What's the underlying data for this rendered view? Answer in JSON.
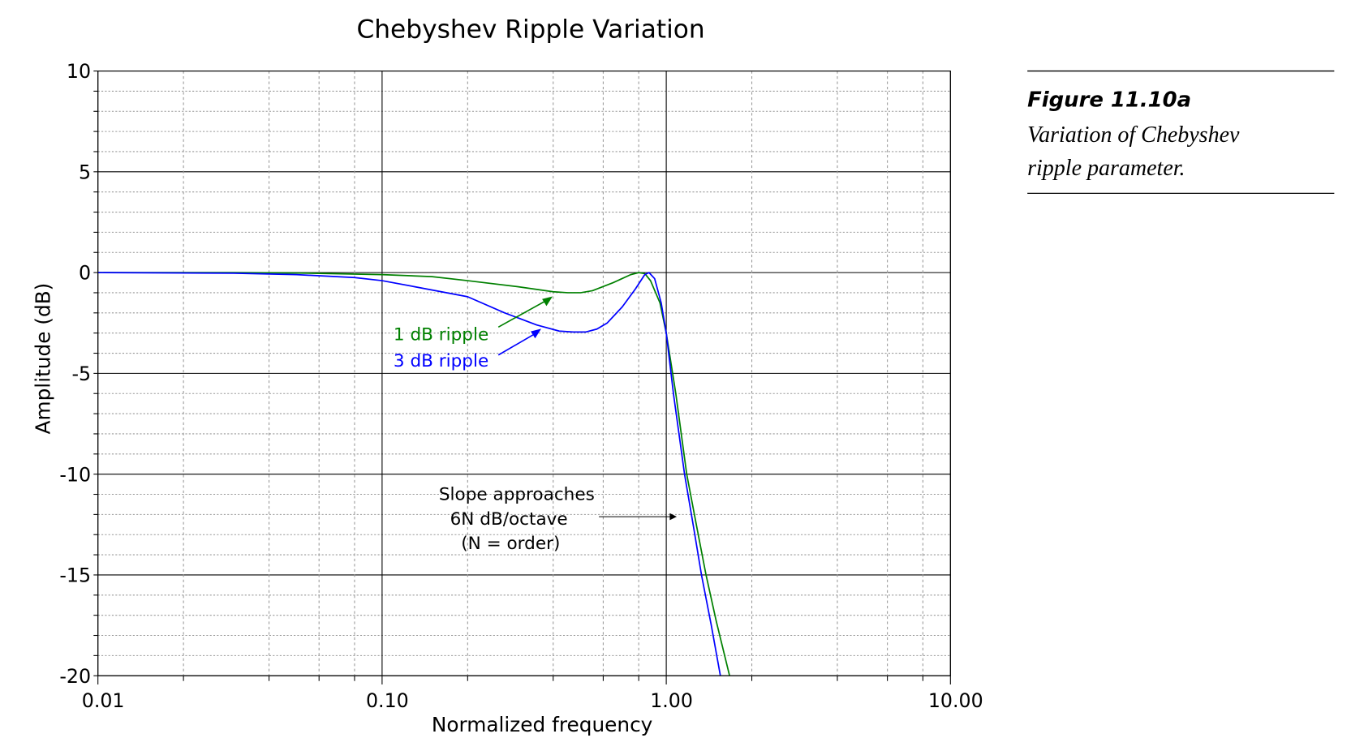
{
  "chart_data": {
    "type": "line",
    "title": "Chebyshev Ripple Variation",
    "xlabel": "Normalized frequency",
    "ylabel": "Amplitude (dB)",
    "xscale": "log",
    "xlim": [
      0.01,
      10
    ],
    "ylim": [
      -20,
      10
    ],
    "x_ticks": [
      {
        "value": 0.01,
        "label": "0.01"
      },
      {
        "value": 0.1,
        "label": "0.10"
      },
      {
        "value": 1,
        "label": "1.00"
      },
      {
        "value": 10,
        "label": "10.00"
      }
    ],
    "y_ticks": [
      {
        "value": 10,
        "label": "10"
      },
      {
        "value": 5,
        "label": "5"
      },
      {
        "value": 0,
        "label": "0"
      },
      {
        "value": -5,
        "label": "-5"
      },
      {
        "value": -10,
        "label": "-10"
      },
      {
        "value": -15,
        "label": "-15"
      },
      {
        "value": -20,
        "label": "-20"
      }
    ],
    "grid": true,
    "series": [
      {
        "name": "1 dB ripple",
        "color": "#008000",
        "x": [
          0.01,
          0.03,
          0.05,
          0.1,
          0.15,
          0.2,
          0.3,
          0.4,
          0.45,
          0.5,
          0.55,
          0.65,
          0.75,
          0.8,
          0.84,
          0.88,
          0.95,
          1.0,
          1.08,
          1.18,
          1.28,
          1.38,
          1.5,
          1.67
        ],
        "y": [
          0,
          0,
          -0.02,
          -0.1,
          -0.2,
          -0.4,
          -0.7,
          -0.95,
          -1.0,
          -1.0,
          -0.9,
          -0.5,
          -0.1,
          0,
          -0.05,
          -0.4,
          -1.5,
          -3.0,
          -6.0,
          -10.0,
          -12.6,
          -15.0,
          -17.3,
          -20.0
        ]
      },
      {
        "name": "3 dB ripple",
        "color": "#0000ff",
        "x": [
          0.01,
          0.03,
          0.05,
          0.08,
          0.1,
          0.13,
          0.2,
          0.27,
          0.35,
          0.42,
          0.47,
          0.52,
          0.57,
          0.62,
          0.7,
          0.78,
          0.84,
          0.87,
          0.91,
          0.96,
          1.0,
          1.06,
          1.16,
          1.25,
          1.33,
          1.44,
          1.55
        ],
        "y": [
          0,
          -0.03,
          -0.1,
          -0.25,
          -0.4,
          -0.7,
          -1.2,
          -2.0,
          -2.6,
          -2.9,
          -2.95,
          -2.95,
          -2.8,
          -2.5,
          -1.7,
          -0.8,
          -0.1,
          0,
          -0.3,
          -1.5,
          -3.0,
          -6.0,
          -10.0,
          -12.7,
          -15.0,
          -17.5,
          -20.0
        ]
      }
    ],
    "annotations": [
      {
        "id": "ripple1",
        "text": "1 dB ripple",
        "color": "#008000"
      },
      {
        "id": "ripple3",
        "text": "3 dB ripple",
        "color": "#0000ff"
      },
      {
        "id": "slope",
        "lines": [
          "Slope approaches",
          "6N dB/octave",
          "(N = order)"
        ],
        "color": "#000000"
      }
    ]
  },
  "caption": {
    "figure_label": "Figure 11.10a",
    "text_lines": [
      "Variation of Chebyshev",
      "ripple parameter."
    ]
  }
}
